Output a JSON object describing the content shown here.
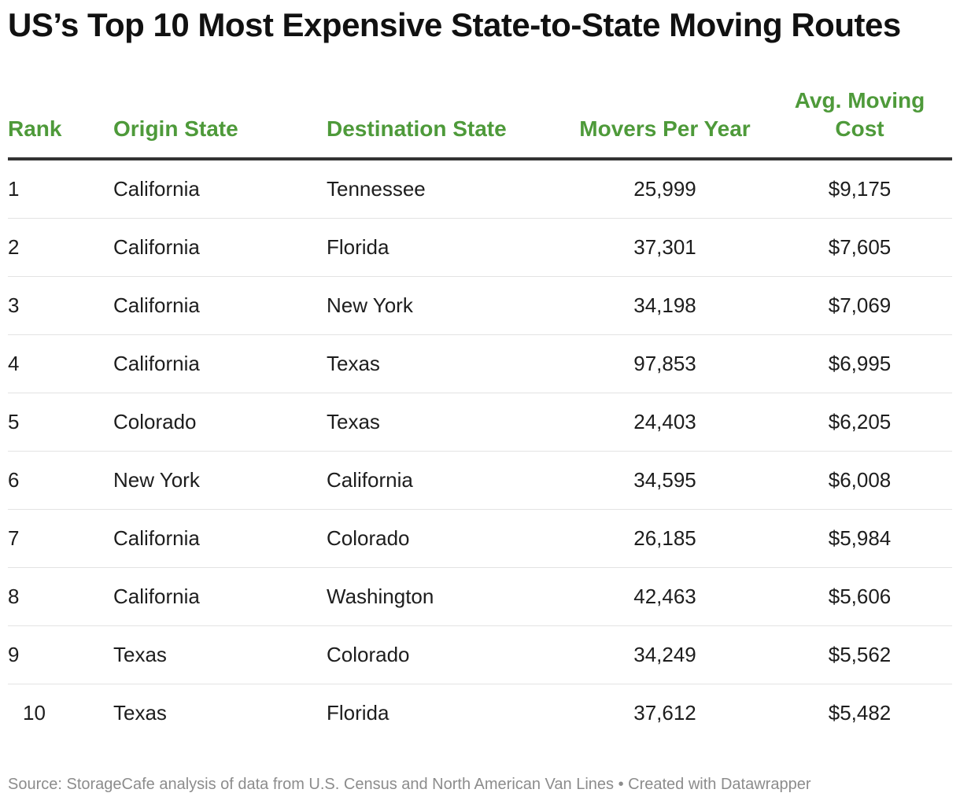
{
  "chart_data": {
    "type": "table",
    "title": "US’s Top 10 Most Expensive State-to-State Moving Routes",
    "columns": [
      "Rank",
      "Origin State",
      "Destination State",
      "Movers Per Year",
      "Avg. Moving Cost"
    ],
    "rows": [
      {
        "rank": "1",
        "origin": "California",
        "destination": "Tennessee",
        "movers": "25,999",
        "cost": "$9,175"
      },
      {
        "rank": "2",
        "origin": "California",
        "destination": "Florida",
        "movers": "37,301",
        "cost": "$7,605"
      },
      {
        "rank": "3",
        "origin": "California",
        "destination": "New York",
        "movers": "34,198",
        "cost": "$7,069"
      },
      {
        "rank": "4",
        "origin": "California",
        "destination": "Texas",
        "movers": "97,853",
        "cost": "$6,995"
      },
      {
        "rank": "5",
        "origin": "Colorado",
        "destination": "Texas",
        "movers": "24,403",
        "cost": "$6,205"
      },
      {
        "rank": "6",
        "origin": "New York",
        "destination": "California",
        "movers": "34,595",
        "cost": "$6,008"
      },
      {
        "rank": "7",
        "origin": "California",
        "destination": "Colorado",
        "movers": "26,185",
        "cost": "$5,984"
      },
      {
        "rank": "8",
        "origin": "California",
        "destination": "Washington",
        "movers": "42,463",
        "cost": "$5,606"
      },
      {
        "rank": "9",
        "origin": "Texas",
        "destination": "Colorado",
        "movers": "34,249",
        "cost": "$5,562"
      },
      {
        "rank": "10",
        "origin": "Texas",
        "destination": "Florida",
        "movers": "37,612",
        "cost": "$5,482"
      }
    ],
    "header_color": "#4e9a3a"
  },
  "footer": {
    "source": "Source: StorageCafe analysis of data from U.S. Census and North American Van Lines • Created with Datawrapper"
  }
}
